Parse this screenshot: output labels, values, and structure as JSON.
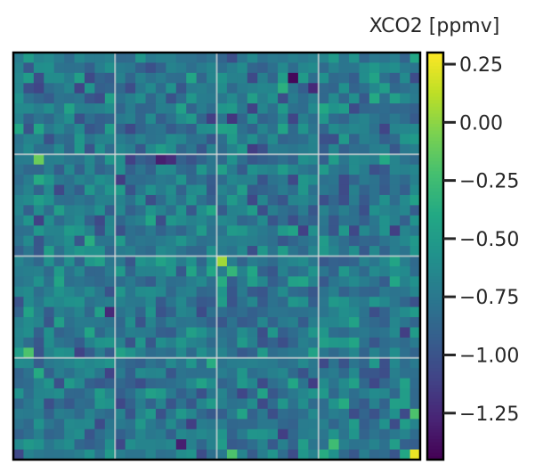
{
  "chart_data": {
    "type": "heatmap",
    "title": "",
    "xlabel": "",
    "ylabel": "",
    "colormap": "viridis",
    "grid": true,
    "colorbar": {
      "label": "XCO2 [ppmv]",
      "vmin": -1.45,
      "vmax": 0.3,
      "ticks": [
        0.25,
        0.0,
        -0.25,
        -0.5,
        -0.75,
        -1.0,
        -1.25
      ],
      "tick_labels": [
        "0.25",
        "0.00",
        "−0.25",
        "−0.50",
        "−0.75",
        "−1.00",
        "−1.25"
      ]
    },
    "grid_size": [
      40,
      40
    ],
    "base_value": -0.75,
    "anomalies": [
      {
        "row": 2,
        "col": 27,
        "value": -1.42
      },
      {
        "row": 3,
        "col": 29,
        "value": -1.25
      },
      {
        "row": 10,
        "col": 14,
        "value": -1.3
      },
      {
        "row": 10,
        "col": 15,
        "value": -1.22
      },
      {
        "row": 10,
        "col": 2,
        "value": -0.1
      },
      {
        "row": 20,
        "col": 20,
        "value": 0.05
      },
      {
        "row": 21,
        "col": 21,
        "value": -0.3
      },
      {
        "row": 25,
        "col": 9,
        "value": -1.25
      },
      {
        "row": 29,
        "col": 1,
        "value": -0.2
      },
      {
        "row": 35,
        "col": 39,
        "value": -0.2
      },
      {
        "row": 38,
        "col": 16,
        "value": -1.3
      },
      {
        "row": 38,
        "col": 31,
        "value": -0.25
      },
      {
        "row": 39,
        "col": 21,
        "value": -0.2
      },
      {
        "row": 39,
        "col": 39,
        "value": 0.25
      }
    ]
  },
  "colors": {
    "axis": "#262626",
    "gridline": "#d9d9d9",
    "frame": "#000000"
  }
}
